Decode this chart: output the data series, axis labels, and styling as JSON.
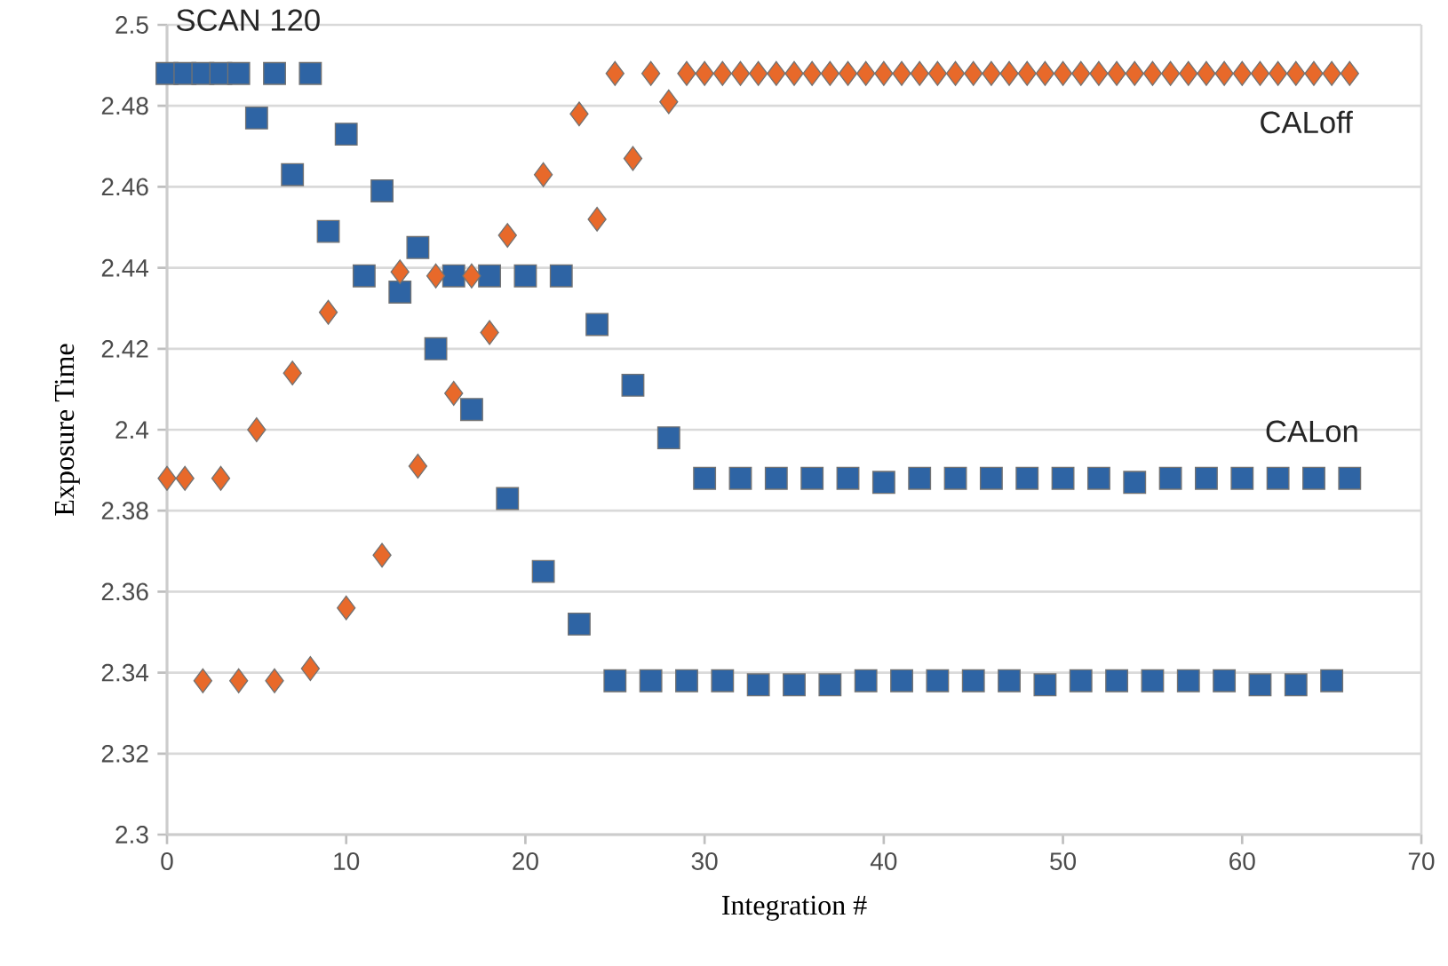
{
  "chart_data": {
    "type": "scatter",
    "xlabel": "Integration #",
    "ylabel": "Exposure Time",
    "x": [
      0,
      1,
      2,
      3,
      4,
      5,
      6,
      7,
      8,
      9,
      10,
      11,
      12,
      13,
      14,
      15,
      16,
      17,
      18,
      19,
      20,
      21,
      22,
      23,
      24,
      25,
      26,
      27,
      28,
      29,
      30,
      31,
      32,
      33,
      34,
      35,
      36,
      37,
      38,
      39,
      40,
      41,
      42,
      43,
      44,
      45,
      46,
      47,
      48,
      49,
      50,
      51,
      52,
      53,
      54,
      55,
      56,
      57,
      58,
      59,
      60,
      61,
      62,
      63,
      64,
      65,
      66
    ],
    "series": [
      {
        "color": "#2e64a4",
        "marker": "square",
        "values": [
          2.488,
          2.488,
          2.488,
          2.488,
          2.488,
          2.477,
          2.488,
          2.463,
          2.488,
          2.449,
          2.473,
          2.438,
          2.459,
          2.434,
          2.445,
          2.42,
          2.438,
          2.405,
          2.438,
          2.383,
          2.438,
          2.365,
          2.438,
          2.352,
          2.426,
          2.338,
          2.411,
          2.338,
          2.398,
          2.338,
          2.388,
          2.338,
          2.388,
          2.337,
          2.388,
          2.337,
          2.388,
          2.337,
          2.388,
          2.338,
          2.387,
          2.338,
          2.388,
          2.338,
          2.388,
          2.338,
          2.388,
          2.338,
          2.388,
          2.337,
          2.388,
          2.338,
          2.388,
          2.338,
          2.387,
          2.338,
          2.388,
          2.338,
          2.388,
          2.338,
          2.388,
          2.337,
          2.388,
          2.337,
          2.388,
          2.338,
          2.388
        ]
      },
      {
        "color": "#e8692a",
        "marker": "diamond",
        "values": [
          2.388,
          2.388,
          2.338,
          2.388,
          2.338,
          2.4,
          2.338,
          2.414,
          2.341,
          2.429,
          2.356,
          null,
          2.369,
          2.439,
          2.391,
          2.438,
          2.409,
          2.438,
          2.424,
          2.448,
          null,
          2.463,
          null,
          2.478,
          2.452,
          2.488,
          2.467,
          2.488,
          2.481,
          2.488,
          2.488,
          2.488,
          2.488,
          2.488,
          2.488,
          2.488,
          2.488,
          2.488,
          2.488,
          2.488,
          2.488,
          2.488,
          2.488,
          2.488,
          2.488,
          2.488,
          2.488,
          2.488,
          2.488,
          2.488,
          2.488,
          2.488,
          2.488,
          2.488,
          2.488,
          2.488,
          2.488,
          2.488,
          2.488,
          2.488,
          2.488,
          2.488,
          2.488,
          2.488,
          2.488,
          2.488,
          2.488
        ]
      }
    ],
    "xlim": [
      0,
      70
    ],
    "xticks": [
      0,
      10,
      20,
      30,
      40,
      50,
      60,
      70
    ],
    "ylim": [
      2.3,
      2.5
    ],
    "yticks": [
      2.3,
      2.32,
      2.34,
      2.36,
      2.38,
      2.4,
      2.42,
      2.44,
      2.46,
      2.48,
      2.5
    ],
    "grid": "y",
    "annotations": [
      "SCAN 120",
      "CALoff",
      "CALon"
    ]
  }
}
